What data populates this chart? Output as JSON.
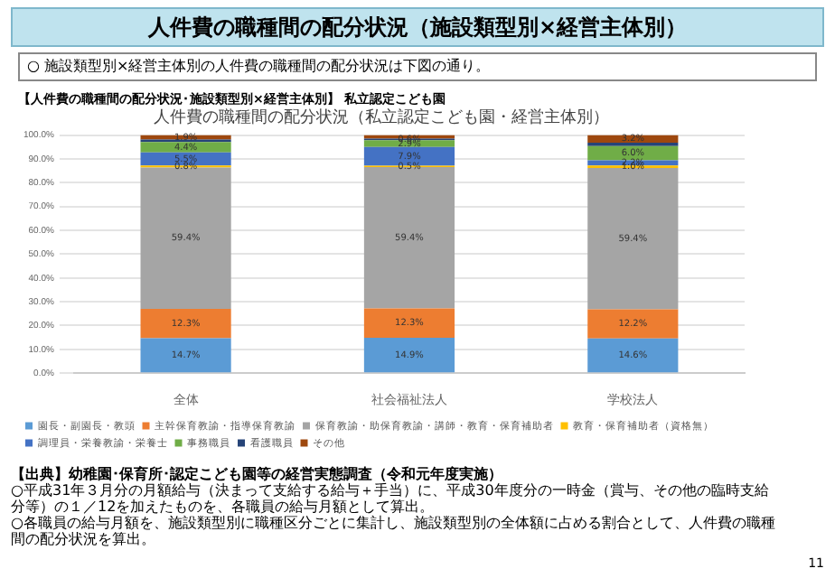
{
  "chart_data": {
    "type": "bar",
    "stacked": true,
    "title": "人件費の職種間の配分状況（私立認定こども園・経営主体別）",
    "subtitle": "【人件費の職種間の配分状況･施設類型別×経営主体別】 私立認定こども園",
    "annotations": [
      "人件費の職種間の配分状況（施設類型別×経営主体別）",
      "○  施設類型別×経営主体別の人件費の職種間の配分状況は下図の通り。",
      "【出典】幼稚園･保育所･認定こども園等の経営実態調査（令和元年度実施）",
      "○平成31年３月分の月額給与（決まって支給する給与＋手当）に、平成30年度分の一時金（賞与、その他の臨時支給分等）の１／12を加えたものを、各職員の給与月額として算出。",
      "○各職員の給与月額を、施設類型別に職種区分ごとに集計し、施設類型別の全体額に占める割合として、人件費の職種間の配分状況を算出。",
      "11"
    ],
    "categories": [
      "全体",
      "社会福祉法人",
      "学校法人"
    ],
    "ylim": [
      0,
      100
    ],
    "yticks": [
      {
        "value": 0,
        "label": "0.0%"
      },
      {
        "value": 10,
        "label": "10.0%"
      },
      {
        "value": 20,
        "label": "20.0%"
      },
      {
        "value": 30,
        "label": "30.0%"
      },
      {
        "value": 40,
        "label": "40.0%"
      },
      {
        "value": 50,
        "label": "50.0%"
      },
      {
        "value": 60,
        "label": "60.0%"
      },
      {
        "value": 70,
        "label": "70.0%"
      },
      {
        "value": 80,
        "label": "80.0%"
      },
      {
        "value": 90,
        "label": "90.0%"
      },
      {
        "value": 100,
        "label": "100.0%"
      }
    ],
    "grid": "y",
    "legend": "bottom",
    "series": [
      {
        "name": "園長・副園長・教頭",
        "color": "#5b9bd5",
        "values": [
          14.7,
          14.9,
          14.6
        ],
        "value_labels": [
          "14.7%",
          "14.9%",
          "14.6%"
        ]
      },
      {
        "name": "主幹保育教諭・指導保育教諭",
        "color": "#ed7d31",
        "values": [
          12.3,
          12.3,
          12.2
        ],
        "value_labels": [
          "12.3%",
          "12.3%",
          "12.2%"
        ]
      },
      {
        "name": "保育教諭・助保育教諭・講師・教育・保育補助者",
        "color": "#a5a5a5",
        "values": [
          59.4,
          59.4,
          59.4
        ],
        "value_labels": [
          "59.4%",
          "59.4%",
          "59.4%"
        ]
      },
      {
        "name": "教育・保育補助者（資格無）",
        "color": "#ffc000",
        "values": [
          0.8,
          0.5,
          1.0
        ],
        "value_labels": [
          "0.8%",
          "0.5%",
          "1.0%"
        ]
      },
      {
        "name": "調理員・栄養教諭・栄養士",
        "color": "#4472c4",
        "values": [
          5.5,
          7.9,
          2.2
        ],
        "value_labels": [
          "5.5%",
          "7.9%",
          "2.2%"
        ]
      },
      {
        "name": "事務職員",
        "color": "#70ad47",
        "values": [
          4.4,
          2.9,
          6.0
        ],
        "value_labels": [
          "4.4%",
          "2.9%",
          "6.0%"
        ]
      },
      {
        "name": "看護職員",
        "color": "#264478",
        "values": [
          1.0,
          0.6,
          1.4
        ],
        "value_labels": [
          null,
          "0.6%",
          null
        ]
      },
      {
        "name": "その他",
        "color": "#9e480e",
        "values": [
          1.9,
          1.5,
          3.2
        ],
        "value_labels": [
          "1.9%",
          null,
          "3.2%"
        ]
      }
    ]
  }
}
